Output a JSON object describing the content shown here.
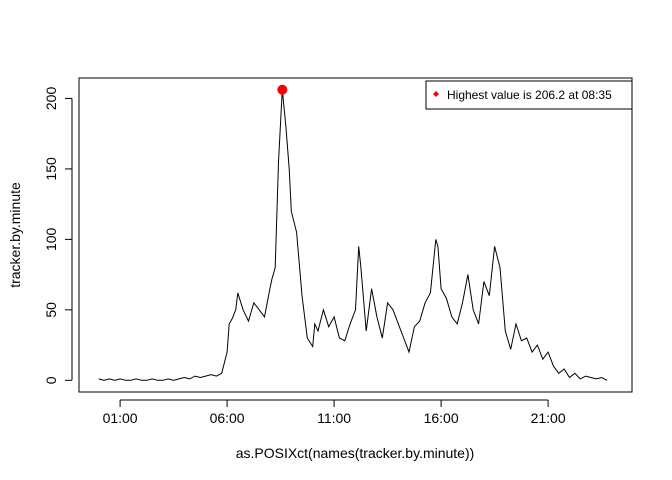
{
  "chart_data": {
    "type": "line",
    "title": "",
    "xlabel": "as.POSIXct(names(tracker.by.minute))",
    "ylabel": "tracker.by.minute",
    "x_tick_labels": [
      "01:00",
      "06:00",
      "11:00",
      "16:00",
      "21:00"
    ],
    "x_tick_hours": [
      1,
      6,
      11,
      16,
      21
    ],
    "y_tick_labels": [
      "0",
      "50",
      "100",
      "150",
      "200"
    ],
    "y_tick_values": [
      0,
      50,
      100,
      150,
      200
    ],
    "xlim_hours": [
      -0.92,
      24.92
    ],
    "ylim": [
      -8.3,
      214.5
    ],
    "grid": false,
    "legend": {
      "position": "top-right",
      "entry": "Highest value is 206.2 at 08:35",
      "marker_color": "#ff0000"
    },
    "highlight": {
      "hour": 8.58,
      "value": 206.2,
      "time_label": "08:35",
      "color": "#ff0000"
    },
    "line_color": "#000000",
    "series": [
      {
        "x": [
          0,
          0.25,
          0.5,
          0.75,
          1,
          1.25,
          1.5,
          1.75,
          2,
          2.25,
          2.5,
          2.75,
          3,
          3.25,
          3.5,
          3.75,
          4,
          4.25,
          4.5,
          4.75,
          5,
          5.25,
          5.5,
          5.75,
          6,
          6.1,
          6.25,
          6.4,
          6.5,
          6.75,
          7,
          7.25,
          7.5,
          7.75,
          8,
          8.1,
          8.25,
          8.4,
          8.58,
          8.75,
          8.9,
          9,
          9.25,
          9.5,
          9.75,
          10,
          10.1,
          10.25,
          10.5,
          10.75,
          11,
          11.25,
          11.5,
          11.75,
          12,
          12.15,
          12.25,
          12.5,
          12.75,
          13,
          13.25,
          13.5,
          13.75,
          14,
          14.25,
          14.5,
          14.75,
          15,
          15.25,
          15.5,
          15.75,
          15.85,
          16,
          16.25,
          16.5,
          16.75,
          17,
          17.25,
          17.5,
          17.75,
          18,
          18.25,
          18.5,
          18.75,
          19,
          19.25,
          19.5,
          19.75,
          20,
          20.25,
          20.5,
          20.75,
          21,
          21.25,
          21.5,
          21.75,
          22,
          22.25,
          22.5,
          22.75,
          23,
          23.25,
          23.5,
          23.75
        ],
        "values": [
          1,
          0,
          1,
          0,
          1,
          0,
          0,
          1,
          0,
          0,
          1,
          0,
          0,
          1,
          0,
          1,
          2,
          1,
          3,
          2,
          3,
          4,
          3,
          5,
          20,
          40,
          44,
          50,
          62,
          50,
          42,
          55,
          50,
          45,
          65,
          72,
          80,
          155,
          206.2,
          180,
          150,
          120,
          105,
          60,
          30,
          24,
          40,
          35,
          50,
          38,
          45,
          30,
          28,
          40,
          50,
          95,
          80,
          35,
          65,
          45,
          30,
          55,
          50,
          40,
          30,
          20,
          38,
          42,
          55,
          62,
          100,
          95,
          65,
          58,
          45,
          40,
          55,
          75,
          50,
          40,
          70,
          60,
          95,
          80,
          35,
          22,
          40,
          28,
          30,
          20,
          25,
          15,
          20,
          10,
          5,
          8,
          2,
          5,
          1,
          3,
          2,
          1,
          2,
          0
        ]
      }
    ]
  }
}
